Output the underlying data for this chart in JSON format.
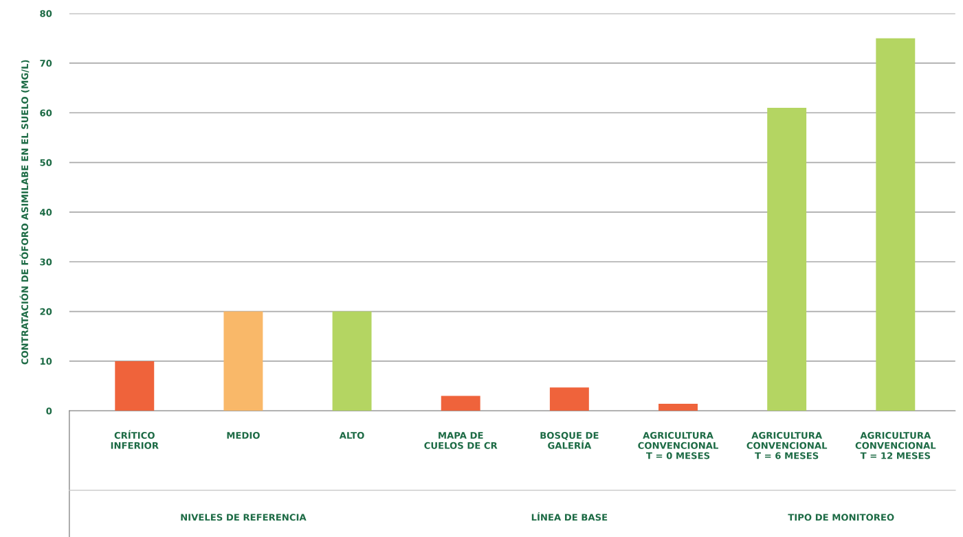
{
  "chart_data": {
    "type": "bar",
    "ylabel": "CONTRATACIÓN DE FÓFORO ASIMILABE EN EL SUELO (MG/L)",
    "categories": [
      "CRÍTICO\nINFERIOR",
      "MEDIO",
      "ALTO",
      "MAPA DE\nCUELOS DE CR",
      "BOSQUE DE\nGALERÍA",
      "AGRICULTURA\nCONVENCIONAL\nT = 0 MESES",
      "AGRICULTURA\nCONVENCIONAL\nT = 6 MESES",
      "AGRICULTURA\nCONVENCIONAL\nT = 12 MESES"
    ],
    "values": [
      10,
      20,
      20,
      3,
      4.7,
      1.4,
      61,
      75
    ],
    "colors": [
      "#ef633b",
      "#f9b869",
      "#b4d562",
      "#ef633b",
      "#ef633b",
      "#ef633b",
      "#b4d562",
      "#b4d562"
    ],
    "ylim": [
      0,
      80
    ],
    "yticks": [
      0,
      10,
      20,
      30,
      40,
      50,
      60,
      70,
      80
    ],
    "grid": "y",
    "annotations": [
      "NIVELES DE REFERENCIA",
      "LÍNEA DE BASE",
      "TIPO DE MONITOREO"
    ]
  }
}
